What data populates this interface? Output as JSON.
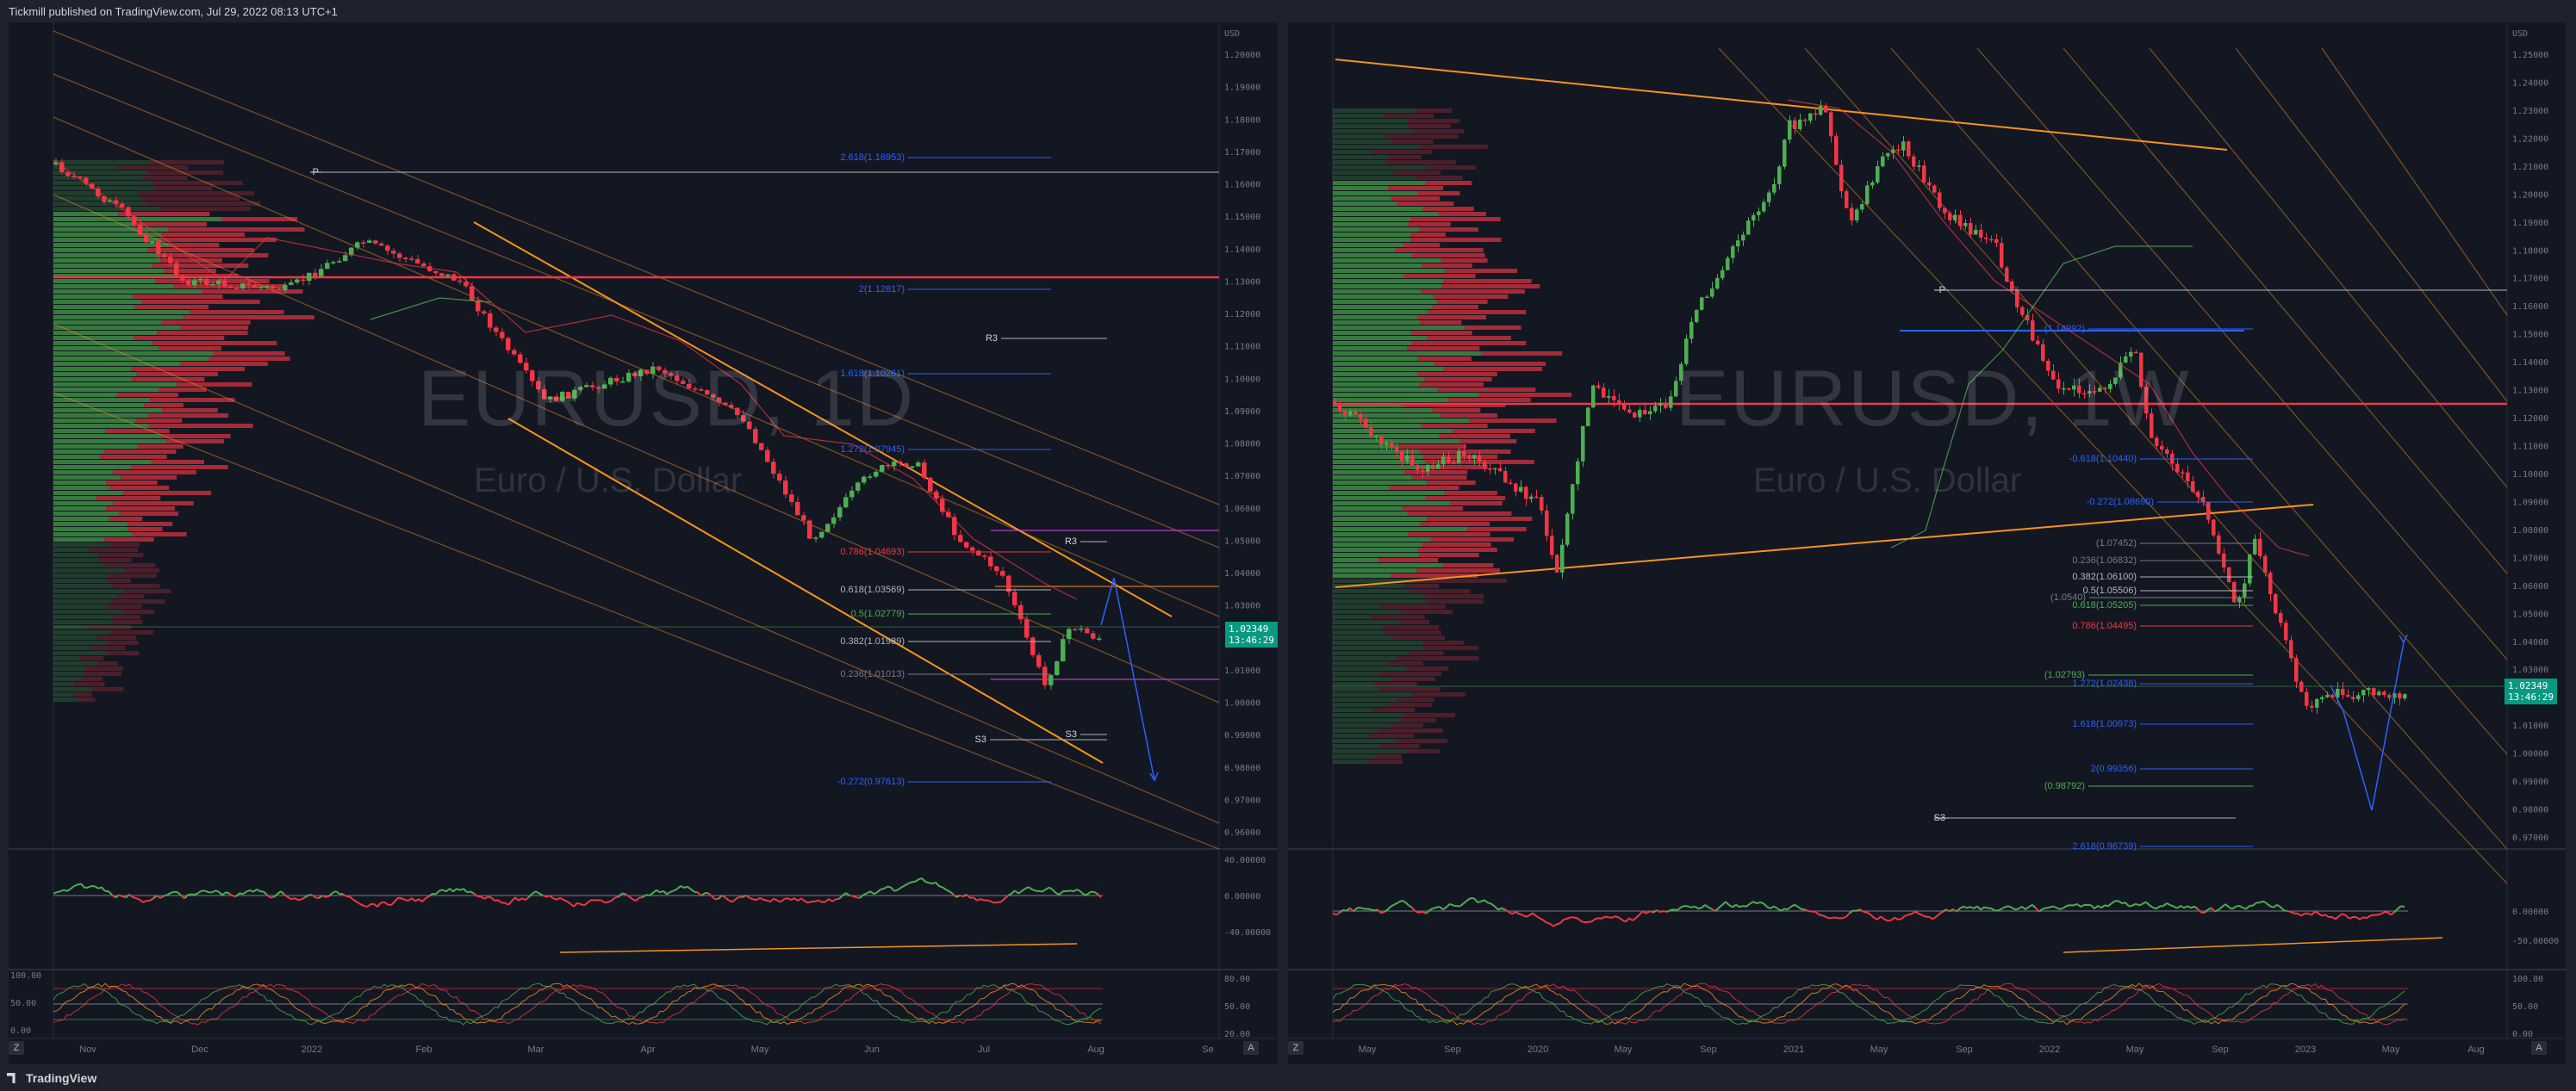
{
  "header": {
    "text": "Tickmill published on TradingView.com, Jul 29, 2022 08:13 UTC+1"
  },
  "footer": {
    "logo": "TradingView"
  },
  "left": {
    "symbol": "EURUSD, 1D",
    "name": "Euro / U.S. Dollar",
    "currency": "USD",
    "price": "1.02349",
    "countdown": "13:46:29",
    "price_ticks": [
      "1.20000",
      "1.19000",
      "1.18000",
      "1.17000",
      "1.16000",
      "1.15000",
      "1.14000",
      "1.13000",
      "1.12000",
      "1.11000",
      "1.10000",
      "1.09000",
      "1.08000",
      "1.07000",
      "1.06000",
      "1.05000",
      "1.04000",
      "1.03000",
      "1.02000",
      "1.01000",
      "1.00000",
      "0.99000",
      "0.98000",
      "0.97000",
      "0.96000"
    ],
    "time_ticks": [
      "Nov",
      "Dec",
      "2022",
      "Feb",
      "Mar",
      "Apr",
      "May",
      "Jun",
      "Jul",
      "Aug",
      "Se"
    ],
    "fib_labels": [
      {
        "text": "2.618(1.16953)",
        "color": "#2962ff"
      },
      {
        "text": "2(1.12817)",
        "color": "#2962ff"
      },
      {
        "text": "1.618(1.10261)",
        "color": "#2962ff"
      },
      {
        "text": "1.272(1.07945)",
        "color": "#2962ff"
      },
      {
        "text": "0.786(1.04693)",
        "color": "#f23645"
      },
      {
        "text": "0.618(1.03569)",
        "color": "#b2b5be"
      },
      {
        "text": "0.5(1.02779)",
        "color": "#4caf50"
      },
      {
        "text": "0.382(1.01989)",
        "color": "#b2b5be"
      },
      {
        "text": "0.236(1.01013)",
        "color": "#787b86"
      },
      {
        "text": "-0.272(0.97613)",
        "color": "#2962ff"
      }
    ],
    "pivot_labels": [
      "P",
      "R3",
      "R3",
      "S3",
      "S3"
    ],
    "rsi_ticks": [
      "40.00000",
      "0.00000",
      "-40.00000"
    ],
    "stoch_ticks": [
      "80.00",
      "50.00",
      "20.00"
    ],
    "stoch_left_ticks": [
      "100.00",
      "50.00",
      "0.00"
    ]
  },
  "right": {
    "symbol": "EURUSD, 1W",
    "name": "Euro / U.S. Dollar",
    "currency": "USD",
    "price": "1.02349",
    "countdown": "13:46:29",
    "price_ticks": [
      "1.25000",
      "1.24000",
      "1.23000",
      "1.22000",
      "1.21000",
      "1.20000",
      "1.19000",
      "1.18000",
      "1.17000",
      "1.16000",
      "1.15000",
      "1.14000",
      "1.13000",
      "1.12000",
      "1.11000",
      "1.10000",
      "1.09000",
      "1.08000",
      "1.07000",
      "1.06000",
      "1.05000",
      "1.04000",
      "1.03000",
      "1.02000",
      "1.01000",
      "1.00000",
      "0.99000",
      "0.98000",
      "0.97000"
    ],
    "time_ticks": [
      "May",
      "Sep",
      "2020",
      "May",
      "Sep",
      "2021",
      "May",
      "Sep",
      "2022",
      "May",
      "Sep",
      "2023",
      "May",
      "Aug"
    ],
    "fib_labels": [
      {
        "text": "(1.14992)",
        "color": "#2962ff"
      },
      {
        "text": "-0.618(1.10440)",
        "color": "#2962ff"
      },
      {
        "text": "-0.272(1.08690)",
        "color": "#2962ff"
      },
      {
        "text": "(1.07452)",
        "color": "#787b86"
      },
      {
        "text": "0.236(1.06832)",
        "color": "#787b86"
      },
      {
        "text": "0.382(1.06100)",
        "color": "#b2b5be"
      },
      {
        "text": "0.5(1.05506)",
        "color": "#b2b5be"
      },
      {
        "text": "0.618(1.05205)",
        "color": "#4caf50"
      },
      {
        "text": "(1.0540)",
        "color": "#787b86"
      },
      {
        "text": "0.786(1.04495)",
        "color": "#f23645"
      },
      {
        "text": "(1.02793)",
        "color": "#4caf50"
      },
      {
        "text": "1.272(1.02438)",
        "color": "#2962ff"
      },
      {
        "text": "1.618(1.00973)",
        "color": "#2962ff"
      },
      {
        "text": "2(0.99356)",
        "color": "#2962ff"
      },
      {
        "text": "(0.98792)",
        "color": "#4caf50"
      },
      {
        "text": "2.618(0.96739)",
        "color": "#2962ff"
      }
    ],
    "pivot_labels": [
      "P",
      "S3"
    ],
    "rsi_ticks": [
      "0.00000",
      "-50.00000"
    ],
    "stoch_ticks": [
      "100.00",
      "50.00",
      "0.00"
    ]
  },
  "colors": {
    "up": "#4caf50",
    "down": "#f23645",
    "orange": "#f7931a",
    "blue": "#2962ff",
    "price_tag": "#089981"
  }
}
